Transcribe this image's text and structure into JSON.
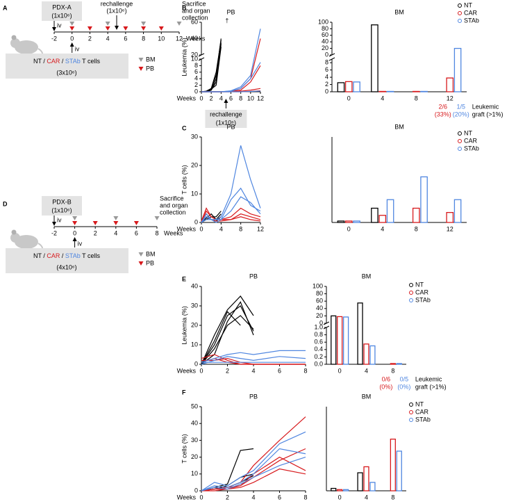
{
  "panels": [
    "A",
    "B",
    "C",
    "D",
    "E",
    "F"
  ],
  "diagrams": [
    {
      "title": "PDX-A",
      "dose": "(1x10⁶)",
      "iv": "iv",
      "rechallenge": "rechallenge",
      "rechallenge_dose": "(1x10⁶)",
      "rechallenge_week": 5,
      "end": [
        "Sacrifice",
        "and organ",
        "collection"
      ],
      "weeks": [
        -2,
        0,
        2,
        4,
        6,
        8,
        10,
        12
      ],
      "weeks_label": "Weeks",
      "bm_weeks": [
        0,
        4,
        8,
        12
      ],
      "pb_weeks": [
        0,
        2,
        4,
        6,
        8,
        10
      ],
      "bm_color": "#999999",
      "pb_color": "#d7191c",
      "cells": [
        "NT",
        " / ",
        "CAR",
        " / ",
        "STAb",
        " T cells"
      ],
      "cells_colors": [
        "#000000",
        "#000000",
        "#d7191c",
        "#000000",
        "#4f86e0",
        "#000000"
      ],
      "cells_dose": "(3x10⁶)",
      "cells_iv": "iv",
      "legend": [
        "BM",
        "PB"
      ]
    },
    {
      "title": "PDX-B",
      "dose": "(1x10⁶)",
      "iv": "iv",
      "end": [
        "Sacrifice",
        "and organ",
        "collection"
      ],
      "weeks": [
        -2,
        0,
        2,
        4,
        6,
        8
      ],
      "weeks_label": "Weeks",
      "bm_weeks": [
        0,
        4,
        8
      ],
      "pb_weeks": [
        0,
        2,
        4,
        6
      ],
      "bm_color": "#999999",
      "pb_color": "#d7191c",
      "cells": [
        "NT",
        " / ",
        "CAR",
        " / ",
        "STAb",
        " T cells"
      ],
      "cells_colors": [
        "#000000",
        "#000000",
        "#d7191c",
        "#000000",
        "#4f86e0",
        "#000000"
      ],
      "cells_dose": "(4x10⁶)",
      "cells_iv": "iv",
      "legend": [
        "BM",
        "PB"
      ]
    }
  ],
  "chart_data": [
    {
      "type": "line",
      "title": "PB",
      "ylabel": "Leukemia (%)",
      "xlabel": "Weeks",
      "x": [
        0,
        1,
        2,
        3,
        4,
        6,
        8,
        10,
        12
      ],
      "xlim": [
        0,
        12
      ],
      "xticks": [
        0,
        2,
        4,
        6,
        8,
        10,
        12
      ],
      "segments": [
        {
          "ylim": [
            0,
            10
          ],
          "yticks": [
            0,
            2,
            4,
            6,
            8,
            10
          ]
        },
        {
          "ylim": [
            20,
            60
          ],
          "yticks": [
            20,
            40,
            60
          ]
        }
      ],
      "annotation": "†",
      "callout": [
        "rechallenge",
        "(1x10⁶)"
      ],
      "series": [
        {
          "color": "#000000",
          "values": [
            0,
            0,
            0.5,
            3,
            35,
            null,
            null,
            null,
            null
          ]
        },
        {
          "color": "#000000",
          "values": [
            0,
            0,
            1,
            5,
            40,
            null,
            null,
            null,
            null
          ]
        },
        {
          "color": "#000000",
          "values": [
            0,
            0.2,
            1,
            6,
            38,
            null,
            null,
            null,
            null
          ]
        },
        {
          "color": "#000000",
          "values": [
            0,
            0,
            0.5,
            4,
            33,
            null,
            null,
            null,
            null
          ]
        },
        {
          "color": "#000000",
          "values": [
            0,
            0.1,
            0.8,
            2,
            30,
            null,
            null,
            null,
            null
          ]
        },
        {
          "color": "#d7191c",
          "values": [
            0,
            0,
            0,
            0,
            0,
            0.2,
            1,
            4,
            40
          ]
        },
        {
          "color": "#d7191c",
          "values": [
            0,
            0,
            0,
            0,
            0,
            0.1,
            0.5,
            3,
            8
          ]
        },
        {
          "color": "#d7191c",
          "values": [
            0,
            0,
            0,
            0,
            0,
            0,
            0.2,
            0.5,
            1
          ]
        },
        {
          "color": "#d7191c",
          "values": [
            0,
            0,
            0,
            0,
            0,
            0,
            0,
            0.1,
            0.3
          ]
        },
        {
          "color": "#4f86e0",
          "values": [
            0,
            0,
            0,
            0,
            0,
            0.3,
            1.5,
            5,
            52
          ]
        },
        {
          "color": "#4f86e0",
          "values": [
            0,
            0,
            0,
            0,
            0,
            0.2,
            1,
            4,
            9
          ]
        },
        {
          "color": "#4f86e0",
          "values": [
            0,
            0,
            0,
            0,
            0,
            0,
            0,
            0.1,
            0.2
          ]
        }
      ]
    },
    {
      "type": "bar",
      "title": "BM",
      "categories": [
        "0",
        "4",
        "8",
        "12"
      ],
      "segments": [
        {
          "ylim": [
            0,
            9
          ],
          "yticks": [
            0,
            2,
            4,
            6,
            8
          ]
        },
        {
          "ylim": [
            0,
            100
          ],
          "yticks": [
            0,
            20,
            40,
            60,
            80,
            100
          ]
        }
      ],
      "fractions": [
        [
          "2/6",
          "(33%)"
        ],
        [
          "1/5",
          "(20%)"
        ]
      ],
      "fractions_label": [
        "Leukemic",
        "graft (>1%)"
      ],
      "series": [
        {
          "name": "NT",
          "color": "#000000",
          "values": [
            2.5,
            92,
            null,
            null
          ]
        },
        {
          "name": "CAR",
          "color": "#d7191c",
          "values": [
            2.8,
            0.1,
            0.1,
            3.8
          ]
        },
        {
          "name": "STAb",
          "color": "#4f86e0",
          "values": [
            2.7,
            0.1,
            0.1,
            20
          ]
        }
      ]
    },
    {
      "type": "line",
      "title": "PB",
      "ylabel": "T cells (%)",
      "xlabel": "Weeks",
      "x": [
        0,
        1,
        2,
        3,
        4,
        6,
        8,
        10,
        12
      ],
      "xlim": [
        0,
        12
      ],
      "xticks": [
        0,
        4,
        8,
        12
      ],
      "ylim": [
        0,
        30
      ],
      "yticks": [
        0,
        10,
        20,
        30
      ],
      "series": [
        {
          "color": "#000000",
          "values": [
            0,
            1.5,
            3,
            1,
            3,
            null,
            null,
            null,
            null
          ]
        },
        {
          "color": "#000000",
          "values": [
            0,
            2,
            1,
            0.5,
            2,
            null,
            null,
            null,
            null
          ]
        },
        {
          "color": "#000000",
          "values": [
            0,
            1,
            2,
            2,
            4,
            null,
            null,
            null,
            null
          ]
        },
        {
          "color": "#d7191c",
          "values": [
            0.5,
            5,
            2,
            1,
            1,
            2,
            5,
            3,
            2
          ]
        },
        {
          "color": "#d7191c",
          "values": [
            0,
            4,
            2,
            1,
            1,
            1,
            3,
            2,
            1
          ]
        },
        {
          "color": "#d7191c",
          "values": [
            0,
            3,
            1,
            0.5,
            0.5,
            1,
            2,
            1,
            0.5
          ]
        },
        {
          "color": "#4f86e0",
          "values": [
            0,
            3,
            1,
            1,
            2,
            10,
            27,
            15,
            5
          ]
        },
        {
          "color": "#4f86e0",
          "values": [
            0,
            2,
            1,
            1,
            1,
            8,
            12,
            6,
            4
          ]
        },
        {
          "color": "#4f86e0",
          "values": [
            0,
            1,
            1,
            0,
            1,
            4,
            9,
            7,
            3
          ]
        }
      ]
    },
    {
      "type": "bar",
      "title": "BM",
      "categories": [
        "0",
        "4",
        "8",
        "12"
      ],
      "ylim": [
        0,
        3
      ],
      "series": [
        {
          "name": "NT",
          "color": "#000000",
          "values": [
            0.05,
            0.5,
            null,
            null
          ]
        },
        {
          "name": "CAR",
          "color": "#d7191c",
          "values": [
            0.05,
            0.25,
            0.5,
            0.35
          ]
        },
        {
          "name": "STAb",
          "color": "#4f86e0",
          "values": [
            0.05,
            0.8,
            1.6,
            0.8
          ]
        }
      ]
    },
    {
      "type": "line",
      "title": "PB",
      "ylabel": "Leukemia (%)",
      "xlabel": "Weeks",
      "x": [
        0,
        1,
        2,
        3,
        4,
        6,
        8
      ],
      "xlim": [
        0,
        8
      ],
      "xticks": [
        0,
        2,
        4,
        6,
        8
      ],
      "ylim": [
        0,
        40
      ],
      "yticks": [
        0,
        10,
        20,
        30,
        40
      ],
      "series": [
        {
          "color": "#000000",
          "values": [
            0,
            10,
            25,
            30,
            17,
            null,
            null
          ]
        },
        {
          "color": "#000000",
          "values": [
            0,
            15,
            28,
            35,
            25,
            null,
            null
          ]
        },
        {
          "color": "#000000",
          "values": [
            0,
            8,
            20,
            25,
            18,
            null,
            null
          ]
        },
        {
          "color": "#000000",
          "values": [
            0,
            5,
            22,
            32,
            15,
            null,
            null
          ]
        },
        {
          "color": "#000000",
          "values": [
            0,
            12,
            27,
            20,
            null,
            null,
            null
          ]
        },
        {
          "color": "#d7191c",
          "values": [
            3,
            5,
            2,
            0,
            0,
            0,
            0
          ]
        },
        {
          "color": "#d7191c",
          "values": [
            1,
            3,
            1,
            0,
            0,
            0,
            0
          ]
        },
        {
          "color": "#d7191c",
          "values": [
            2,
            2,
            3,
            1,
            0,
            0,
            0
          ]
        },
        {
          "color": "#4f86e0",
          "values": [
            1,
            3,
            5,
            6,
            5,
            7,
            7
          ]
        },
        {
          "color": "#4f86e0",
          "values": [
            0,
            2,
            4,
            3,
            2,
            4,
            3
          ]
        },
        {
          "color": "#4f86e0",
          "values": [
            1,
            1,
            1,
            1,
            1,
            1,
            1
          ]
        }
      ]
    },
    {
      "type": "bar",
      "title": "BM",
      "categories": [
        "0",
        "4",
        "8"
      ],
      "segments": [
        {
          "ylim": [
            0,
            1
          ],
          "yticks": [
            {
              "value": 0,
              "label": "0.0"
            },
            0.2,
            0.4,
            0.6,
            0.8,
            {
              "value": 1,
              "label": "1.0"
            }
          ]
        },
        {
          "ylim": [
            0,
            100
          ],
          "yticks": [
            0,
            20,
            40,
            60,
            80,
            100
          ]
        }
      ],
      "fractions": [
        [
          "0/6",
          "(0%)"
        ],
        [
          "0/5",
          "(0%)"
        ]
      ],
      "fractions_label": [
        "Leukemic",
        "graft (>1%)"
      ],
      "series": [
        {
          "name": "NT",
          "color": "#000000",
          "values": [
            20,
            55,
            null
          ]
        },
        {
          "name": "CAR",
          "color": "#d7191c",
          "values": [
            18,
            0.55,
            0.02
          ]
        },
        {
          "name": "STAb",
          "color": "#4f86e0",
          "values": [
            17,
            0.5,
            0.02
          ]
        }
      ]
    },
    {
      "type": "line",
      "title": "PB",
      "ylabel": "T cells (%)",
      "xlabel": "Weeks",
      "x": [
        0,
        1,
        2,
        3,
        4,
        6,
        8
      ],
      "xlim": [
        0,
        8
      ],
      "xticks": [
        0,
        2,
        4,
        6,
        8
      ],
      "ylim": [
        0,
        50
      ],
      "yticks": [
        0,
        10,
        20,
        30,
        40,
        50
      ],
      "series": [
        {
          "color": "#000000",
          "values": [
            0,
            2,
            4,
            24,
            25,
            null,
            null
          ]
        },
        {
          "color": "#000000",
          "values": [
            0,
            1,
            3,
            8,
            10,
            null,
            null
          ]
        },
        {
          "color": "#000000",
          "values": [
            0,
            1,
            2,
            5,
            9,
            null,
            null
          ]
        },
        {
          "color": "#d7191c",
          "values": [
            0,
            1,
            2,
            5,
            15,
            30,
            44
          ]
        },
        {
          "color": "#d7191c",
          "values": [
            0,
            1,
            2,
            3,
            10,
            20,
            12
          ]
        },
        {
          "color": "#d7191c",
          "values": [
            0,
            0,
            1,
            2,
            5,
            13,
            10
          ]
        },
        {
          "color": "#d7191c",
          "values": [
            0,
            1,
            1,
            3,
            8,
            18,
            25
          ]
        },
        {
          "color": "#4f86e0",
          "values": [
            0,
            5,
            3,
            8,
            12,
            28,
            35
          ]
        },
        {
          "color": "#4f86e0",
          "values": [
            0,
            3,
            2,
            5,
            10,
            25,
            22
          ]
        },
        {
          "color": "#4f86e0",
          "values": [
            0,
            2,
            1,
            4,
            8,
            15,
            20
          ]
        }
      ]
    },
    {
      "type": "bar",
      "title": "BM",
      "categories": [
        "0",
        "4",
        "8"
      ],
      "ylim": [
        0,
        7
      ],
      "series": [
        {
          "name": "NT",
          "color": "#000000",
          "values": [
            0.2,
            1.5,
            null
          ]
        },
        {
          "name": "CAR",
          "color": "#d7191c",
          "values": [
            0.1,
            2,
            4.3
          ]
        },
        {
          "name": "STAb",
          "color": "#4f86e0",
          "values": [
            0.1,
            0.7,
            3.3
          ]
        }
      ]
    }
  ]
}
